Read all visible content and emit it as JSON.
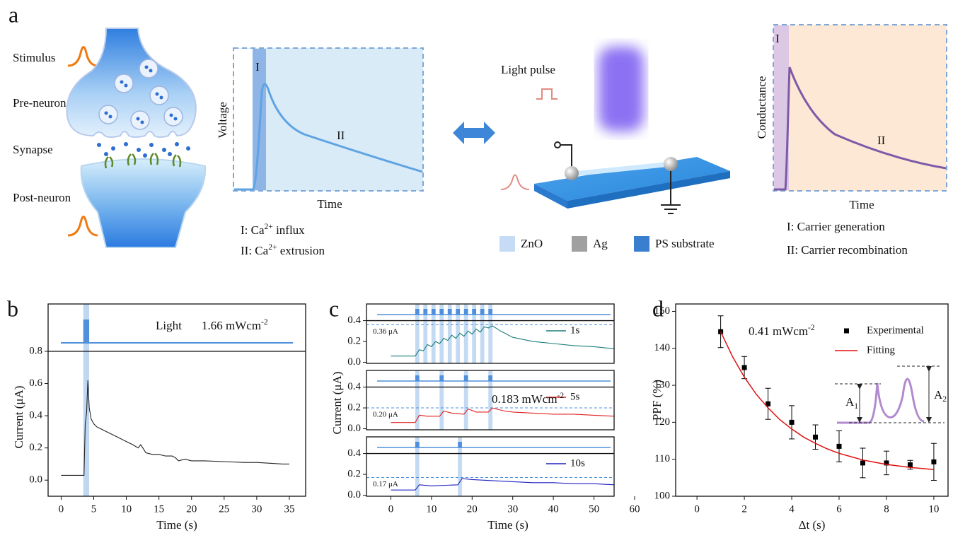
{
  "panel_a": {
    "label": "a",
    "neuron_labels": [
      "Stimulus",
      "Pre-neuron",
      "Synapse",
      "Post-neuron"
    ],
    "voltage_plot": {
      "y_label": "Voltage",
      "x_label": "Time",
      "phases": [
        "I",
        "II"
      ],
      "captions": [
        {
          "prefix": "I: Ca",
          "sup": "2+",
          "suffix": " influx"
        },
        {
          "prefix": "II: Ca",
          "sup": "2+",
          "suffix": " extrusion"
        }
      ]
    },
    "device": {
      "light_label": "Light pulse",
      "legend": [
        "ZnO",
        "Ag",
        "PS substrate"
      ]
    },
    "conductance_plot": {
      "y_label": "Conductance",
      "x_label": "Time",
      "phases": [
        "I",
        "II"
      ],
      "captions": [
        "I: Carrier generation",
        "II: Carrier recombination"
      ]
    }
  },
  "chart_data": [
    {
      "type": "line",
      "label": "b",
      "x_label": "Time (s)",
      "y_label": "Current (μA)",
      "xlim": [
        -2,
        37.5
      ],
      "ylim": [
        -0.1,
        0.8
      ],
      "xticks": [
        0,
        5,
        10,
        15,
        20,
        25,
        30,
        35
      ],
      "yticks": [
        {
          "value": 0,
          "label": "0.0"
        },
        0.2,
        0.4,
        0.6,
        0.8
      ],
      "light_label": "Light",
      "intensity": {
        "text": "1.66 mWcm",
        "sup": "-2"
      },
      "light_pulses": [
        3.4
      ],
      "pulse_width": 0.9,
      "series": [
        {
          "color": "#222222",
          "x": [
            0,
            3.5,
            3.7,
            3.9,
            4.1,
            4.3,
            4.6,
            5,
            5.5,
            6,
            7,
            8,
            9,
            10,
            11,
            11.8,
            12.2,
            13,
            14,
            15,
            16,
            17,
            17.5,
            18,
            19,
            20,
            22,
            25,
            28,
            30,
            32,
            34,
            35
          ],
          "values": [
            0.03,
            0.03,
            0.35,
            0.42,
            0.62,
            0.45,
            0.38,
            0.35,
            0.33,
            0.32,
            0.3,
            0.28,
            0.26,
            0.24,
            0.22,
            0.2,
            0.22,
            0.17,
            0.16,
            0.16,
            0.15,
            0.15,
            0.14,
            0.12,
            0.13,
            0.12,
            0.12,
            0.115,
            0.11,
            0.11,
            0.105,
            0.1,
            0.1
          ]
        }
      ]
    },
    {
      "type": "line",
      "label": "c",
      "x_label": "Time (s)",
      "y_label": "Current (μA)",
      "xlim": [
        -6,
        60
      ],
      "xticks": [
        0,
        10,
        20,
        30,
        40,
        50,
        60
      ],
      "subplots": [
        {
          "ylim": [
            -0.01,
            0.56
          ],
          "yticks": [
            {
              "value": 0,
              "label": "0.0"
            },
            0.2,
            0.4
          ],
          "reference": {
            "value": 0.36,
            "label": "0.36 μA"
          },
          "light_pulses": [
            6,
            8,
            10,
            12,
            14,
            16,
            18,
            20,
            22,
            24
          ],
          "pulse_width": 1,
          "series": [
            {
              "name": "1s",
              "color": "#1a7f7a",
              "x": [
                0,
                6,
                7,
                8,
                9,
                10,
                11,
                12,
                13,
                14,
                15,
                16,
                17,
                18,
                19,
                20,
                21,
                22,
                23,
                24,
                25,
                27,
                30,
                35,
                40,
                45,
                50,
                55
              ],
              "values": [
                0.06,
                0.06,
                0.12,
                0.11,
                0.17,
                0.15,
                0.2,
                0.18,
                0.23,
                0.21,
                0.26,
                0.23,
                0.28,
                0.25,
                0.3,
                0.27,
                0.32,
                0.29,
                0.34,
                0.33,
                0.35,
                0.3,
                0.24,
                0.2,
                0.18,
                0.16,
                0.15,
                0.13
              ]
            }
          ]
        },
        {
          "ylim": [
            -0.01,
            0.56
          ],
          "yticks": [
            {
              "value": 0,
              "label": "0.0"
            },
            0.2,
            0.4
          ],
          "reference": {
            "value": 0.2,
            "label": "0.20 μA"
          },
          "annotation": {
            "text": "0.183 mWcm",
            "sup": "-2"
          },
          "light_pulses": [
            6,
            12,
            18,
            24
          ],
          "pulse_width": 1,
          "series": [
            {
              "name": "5s",
              "color": "#e02020",
              "x": [
                0,
                6,
                7,
                9,
                12,
                13,
                15,
                18,
                19,
                21,
                24,
                25,
                28,
                30,
                35,
                40,
                45,
                50,
                55
              ],
              "values": [
                0.06,
                0.06,
                0.13,
                0.12,
                0.12,
                0.17,
                0.15,
                0.14,
                0.19,
                0.16,
                0.16,
                0.2,
                0.17,
                0.16,
                0.15,
                0.14,
                0.14,
                0.13,
                0.12
              ]
            }
          ]
        },
        {
          "ylim": [
            -0.01,
            0.56
          ],
          "yticks": [
            {
              "value": 0,
              "label": "0.0"
            },
            0.2,
            0.4
          ],
          "reference": {
            "value": 0.17,
            "label": "0.17 μA"
          },
          "light_pulses": [
            6,
            16.5
          ],
          "pulse_width": 1,
          "series": [
            {
              "name": "10s",
              "color": "#1f1fc0",
              "x": [
                0,
                6,
                7,
                10,
                16.5,
                17.5,
                20,
                25,
                30,
                35,
                40,
                45,
                50,
                55
              ],
              "values": [
                0.05,
                0.05,
                0.1,
                0.09,
                0.1,
                0.16,
                0.15,
                0.14,
                0.13,
                0.12,
                0.12,
                0.11,
                0.11,
                0.1
              ]
            }
          ]
        }
      ]
    },
    {
      "type": "scatter",
      "label": "d",
      "x_label": "Δt (s)",
      "y_label": "PPF (%)",
      "xlim": [
        -0.9,
        10.6
      ],
      "ylim": [
        100,
        152
      ],
      "xticks": [
        0,
        2,
        4,
        6,
        8,
        10
      ],
      "yticks": [
        100,
        110,
        120,
        130,
        140,
        150
      ],
      "annotation": {
        "text": "0.41 mWcm",
        "sup": "-2"
      },
      "inset_labels": [
        {
          "text": "A",
          "sub": "1"
        },
        {
          "text": "A",
          "sub": "2"
        }
      ],
      "series": [
        {
          "name": "Experimental",
          "color": "#000000",
          "x": [
            1,
            2,
            3,
            4,
            5,
            6,
            7,
            8,
            9,
            10
          ],
          "values": [
            144.5,
            134.8,
            125,
            120,
            116,
            113.5,
            109,
            109,
            108.5,
            109.3
          ],
          "errors": [
            4.3,
            3,
            4.2,
            4.5,
            3.3,
            4.2,
            4,
            3.2,
            1.2,
            5
          ]
        },
        {
          "name": "Fitting",
          "color": "#e01010",
          "type": "line",
          "x": [
            1,
            1.5,
            2,
            2.5,
            3,
            3.5,
            4,
            4.5,
            5,
            5.5,
            6,
            6.5,
            7,
            7.5,
            8,
            8.5,
            9,
            9.5,
            10
          ],
          "values": [
            144.5,
            137.8,
            132.2,
            127.6,
            123.9,
            120.7,
            118.2,
            116,
            114.3,
            112.8,
            111.6,
            110.7,
            109.8,
            109.2,
            108.6,
            108.2,
            107.8,
            107.5,
            107.2
          ]
        }
      ]
    }
  ]
}
